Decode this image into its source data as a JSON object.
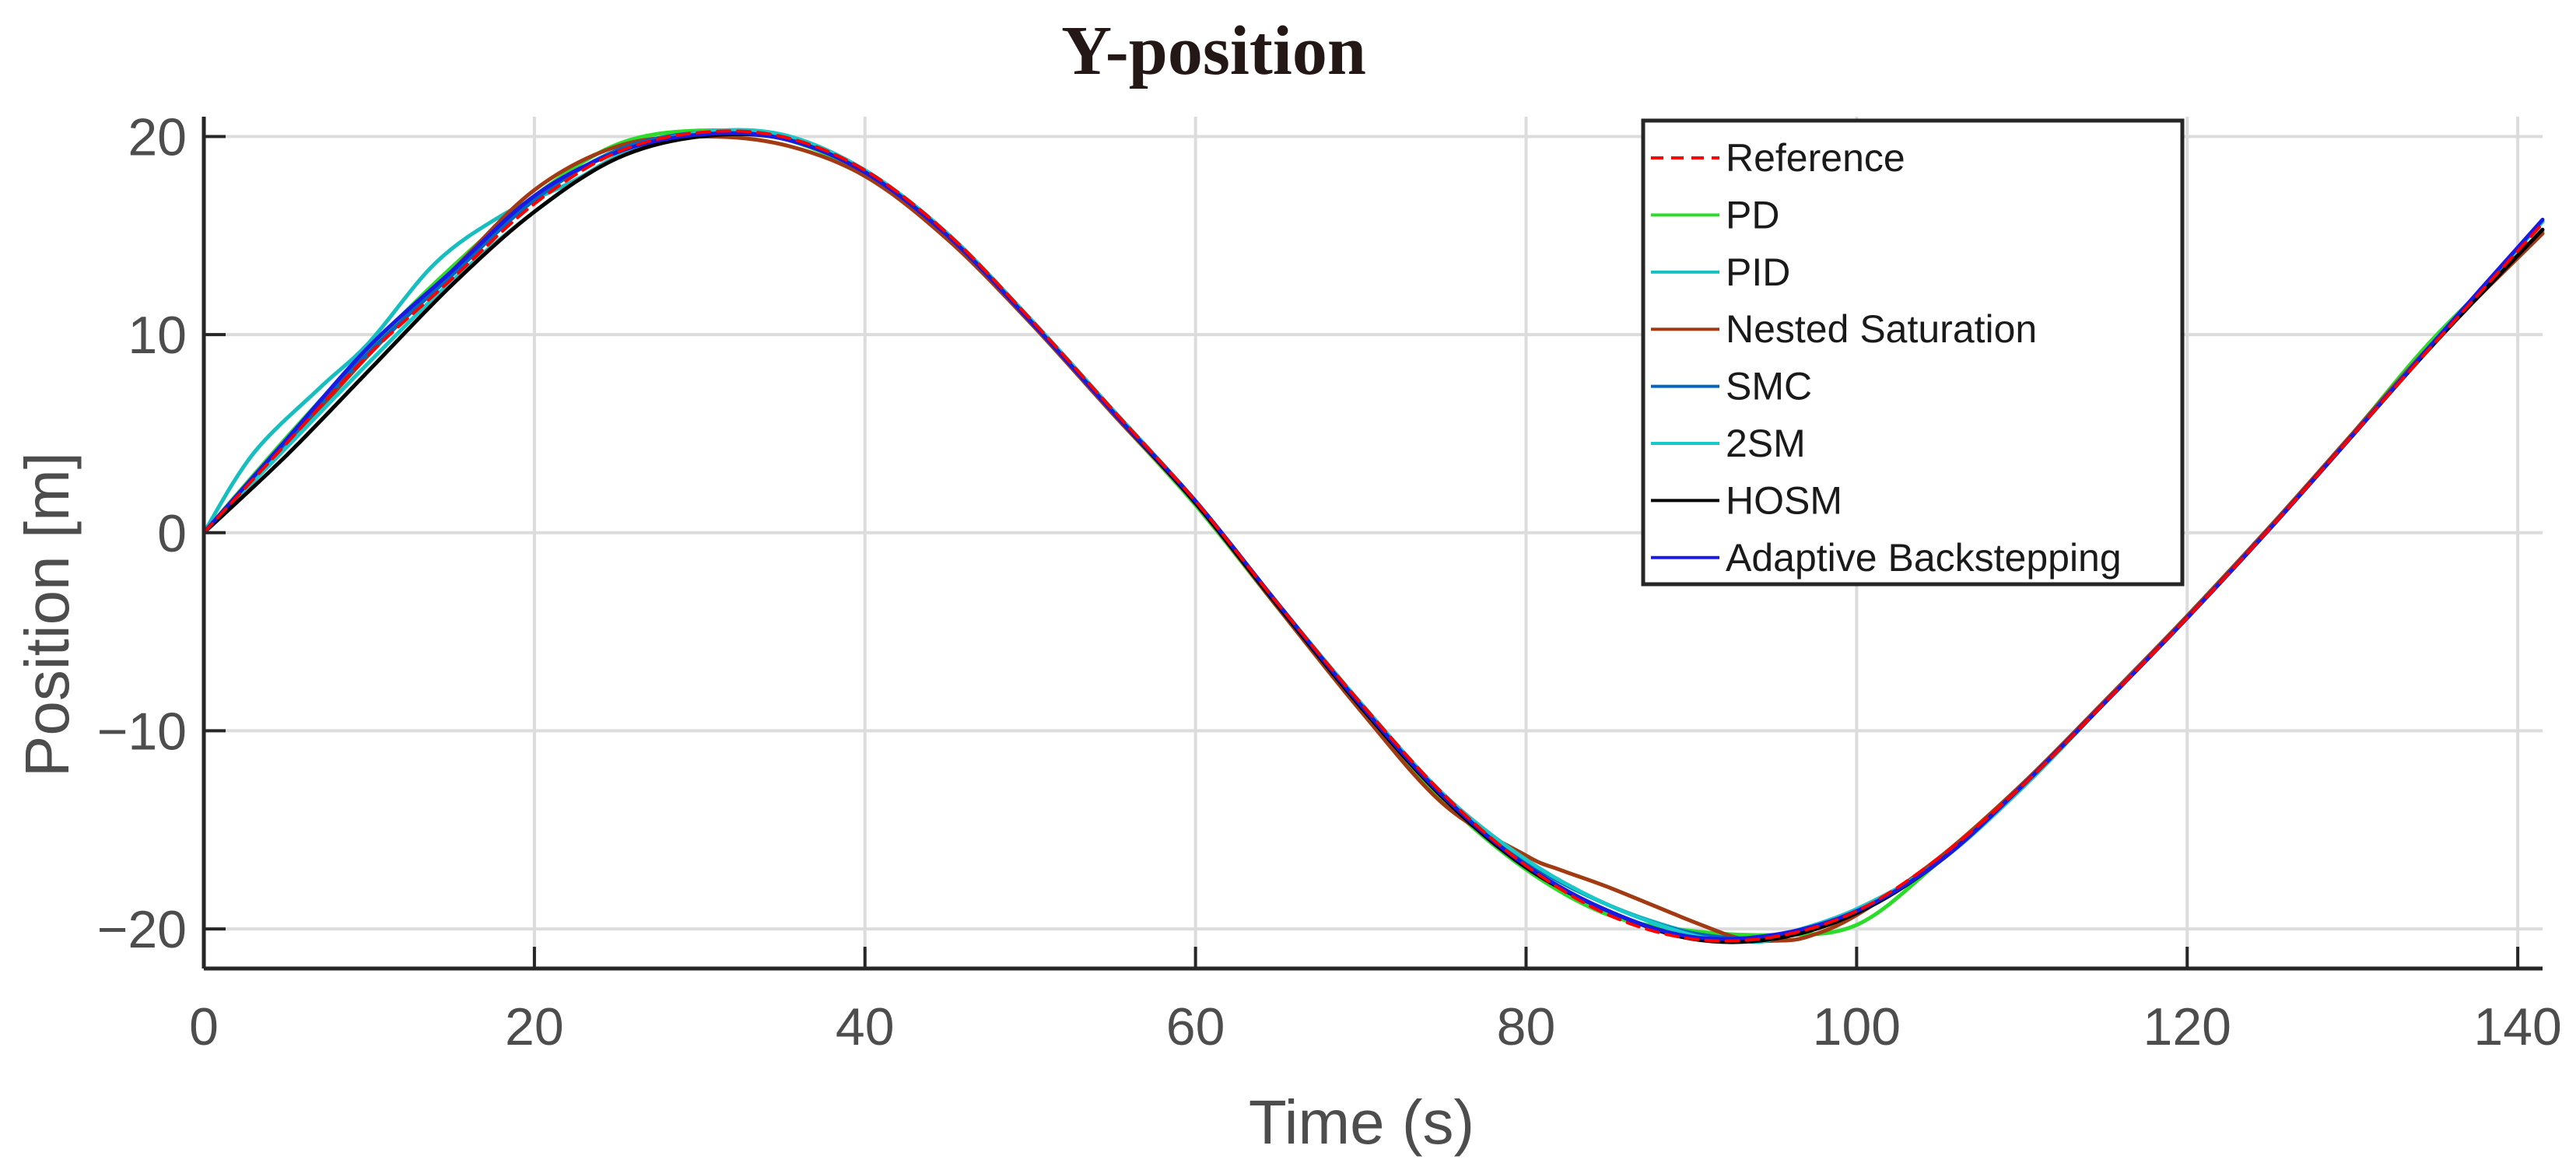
{
  "chart_data": {
    "type": "line",
    "title": "Y-position",
    "xlabel": "Time (s)",
    "ylabel": "Position [m]",
    "xlim": [
      0,
      141.5
    ],
    "ylim": [
      -22,
      21
    ],
    "xticks": [
      0,
      20,
      40,
      60,
      80,
      100,
      120,
      140
    ],
    "yticks": [
      -20,
      -10,
      0,
      10,
      20
    ],
    "xtick_labels": [
      "0",
      "20",
      "40",
      "60",
      "80",
      "100",
      "120",
      "140"
    ],
    "ytick_labels": [
      "−20",
      "−10",
      "0",
      "10",
      "20"
    ],
    "grid": true,
    "legend_position": "top-right",
    "series": [
      {
        "name": "Reference",
        "color": "#ff0000",
        "dashed": true,
        "x": [
          0,
          5,
          10,
          15,
          20,
          25,
          30,
          35,
          40,
          45,
          50,
          55,
          60,
          65,
          70,
          75,
          80,
          85,
          90,
          95,
          100,
          105,
          110,
          115,
          120,
          125,
          130,
          135,
          141.5
        ],
        "y": [
          0,
          4.5,
          9.0,
          12.8,
          16.6,
          19.2,
          20.2,
          20.0,
          18.3,
          15.1,
          10.8,
          6.2,
          1.6,
          -3.6,
          -8.6,
          -13.2,
          -16.8,
          -19.3,
          -20.5,
          -20.4,
          -19.1,
          -16.4,
          -12.8,
          -8.6,
          -4.3,
          0.2,
          4.9,
          9.6,
          15.6
        ]
      },
      {
        "name": "PD",
        "color": "#2bdc2b",
        "dashed": false,
        "x": [
          0,
          5,
          10,
          15,
          20,
          25,
          30,
          35,
          40,
          45,
          50,
          55,
          60,
          65,
          70,
          75,
          80,
          85,
          90,
          95,
          100,
          105,
          110,
          115,
          120,
          125,
          130,
          135,
          141.5
        ],
        "y": [
          0,
          4.8,
          9.3,
          13.4,
          17.0,
          19.6,
          20.3,
          19.9,
          18.1,
          14.9,
          10.6,
          6.0,
          1.4,
          -3.8,
          -8.9,
          -13.5,
          -17.0,
          -19.3,
          -20.1,
          -20.3,
          -19.8,
          -16.6,
          -12.9,
          -8.6,
          -4.2,
          0.3,
          5.0,
          9.9,
          15.2
        ]
      },
      {
        "name": "PID",
        "color": "#17bebf",
        "dashed": false,
        "x": [
          0,
          3,
          7,
          10,
          14,
          18,
          22,
          26,
          30,
          35,
          40,
          45,
          50,
          55,
          60,
          65,
          70,
          75,
          80,
          85,
          90,
          93,
          95,
          100,
          105,
          110,
          115,
          120,
          125,
          130,
          135,
          141.5
        ],
        "y": [
          0,
          4.0,
          7.3,
          9.6,
          13.6,
          16.0,
          17.6,
          19.3,
          20.1,
          20.0,
          18.3,
          15.0,
          10.8,
          6.2,
          1.6,
          -3.6,
          -8.6,
          -13.2,
          -16.6,
          -18.8,
          -20.2,
          -20.6,
          -20.4,
          -19.0,
          -16.6,
          -12.9,
          -8.6,
          -4.3,
          0.2,
          4.9,
          9.7,
          15.7
        ]
      },
      {
        "name": "Nested Saturation",
        "color": "#a23b13",
        "dashed": false,
        "x": [
          0,
          5,
          10,
          15,
          20,
          25,
          30,
          35,
          40,
          45,
          50,
          55,
          60,
          65,
          70,
          75,
          80,
          82,
          85,
          90,
          93,
          95,
          97,
          100,
          105,
          110,
          115,
          120,
          125,
          130,
          135,
          141.5
        ],
        "y": [
          0,
          4.4,
          9.0,
          13.2,
          17.3,
          19.5,
          20.0,
          19.6,
          18.0,
          14.8,
          10.6,
          6.0,
          1.5,
          -3.8,
          -9.0,
          -13.7,
          -16.3,
          -17.0,
          -17.9,
          -19.6,
          -20.5,
          -20.6,
          -20.4,
          -19.3,
          -16.4,
          -12.7,
          -8.5,
          -4.2,
          0.3,
          5.0,
          9.7,
          15.1
        ]
      },
      {
        "name": "SMC",
        "color": "#0066c0",
        "dashed": false,
        "x": [
          0,
          5,
          10,
          15,
          20,
          25,
          30,
          35,
          40,
          45,
          50,
          55,
          60,
          65,
          70,
          75,
          80,
          85,
          90,
          95,
          100,
          105,
          110,
          115,
          120,
          125,
          130,
          135,
          141.5
        ],
        "y": [
          0,
          4.6,
          9.1,
          13.0,
          16.8,
          19.3,
          20.2,
          20.0,
          18.2,
          15.0,
          10.7,
          6.1,
          1.6,
          -3.6,
          -8.7,
          -13.3,
          -16.6,
          -18.8,
          -20.2,
          -20.4,
          -19.2,
          -16.6,
          -12.8,
          -8.6,
          -4.3,
          0.2,
          4.9,
          9.7,
          15.7
        ]
      },
      {
        "name": "2SM",
        "color": "#19c8c8",
        "dashed": false,
        "x": [
          0,
          5,
          10,
          15,
          20,
          25,
          30,
          35,
          40,
          45,
          50,
          55,
          60,
          65,
          70,
          75,
          80,
          85,
          90,
          93,
          95,
          100,
          105,
          110,
          115,
          120,
          125,
          130,
          135,
          141.5
        ],
        "y": [
          0,
          4.3,
          8.6,
          12.7,
          16.2,
          19.0,
          20.2,
          20.1,
          18.3,
          15.1,
          10.8,
          6.2,
          1.6,
          -3.6,
          -8.6,
          -13.2,
          -16.5,
          -18.8,
          -20.3,
          -20.6,
          -20.5,
          -19.0,
          -16.6,
          -12.9,
          -8.6,
          -4.3,
          0.2,
          4.9,
          9.7,
          15.7
        ]
      },
      {
        "name": "HOSM",
        "color": "#000000",
        "dashed": false,
        "x": [
          0,
          5,
          10,
          15,
          20,
          25,
          30,
          35,
          40,
          45,
          50,
          55,
          60,
          65,
          70,
          75,
          80,
          85,
          90,
          95,
          100,
          105,
          110,
          115,
          120,
          125,
          130,
          135,
          141.5
        ],
        "y": [
          0,
          3.9,
          8.2,
          12.5,
          16.2,
          18.9,
          20.0,
          19.9,
          18.2,
          15.0,
          10.7,
          6.1,
          1.5,
          -3.7,
          -8.8,
          -13.4,
          -16.9,
          -19.1,
          -20.5,
          -20.5,
          -19.2,
          -16.6,
          -12.8,
          -8.6,
          -4.3,
          0.2,
          4.9,
          9.6,
          15.3
        ]
      },
      {
        "name": "Adaptive Backstepping",
        "color": "#1a1ae6",
        "dashed": false,
        "x": [
          0,
          5,
          10,
          15,
          20,
          25,
          30,
          35,
          40,
          45,
          50,
          55,
          60,
          65,
          70,
          75,
          80,
          85,
          90,
          95,
          100,
          105,
          110,
          115,
          120,
          125,
          130,
          135,
          141.5
        ],
        "y": [
          0,
          4.7,
          9.4,
          13.2,
          17.0,
          19.2,
          20.1,
          19.9,
          18.2,
          15.0,
          10.7,
          6.1,
          1.6,
          -3.6,
          -8.7,
          -13.3,
          -16.8,
          -19.1,
          -20.4,
          -20.3,
          -19.1,
          -16.6,
          -12.8,
          -8.6,
          -4.3,
          0.2,
          4.9,
          9.7,
          15.8
        ]
      }
    ]
  }
}
